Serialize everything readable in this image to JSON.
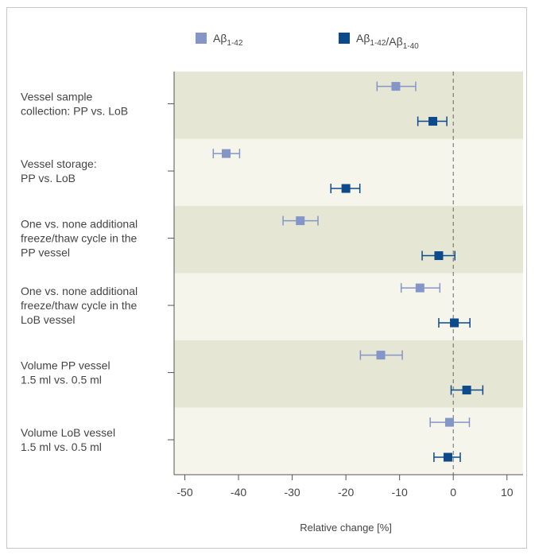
{
  "chart_data": {
    "type": "scatter",
    "subtype": "forest-plot",
    "xlabel": "Relative change [%]",
    "xlim": [
      -52,
      13
    ],
    "xticks": [
      -50,
      -40,
      -30,
      -20,
      -10,
      0,
      10
    ],
    "xtick_labels": [
      "-50",
      "-40",
      "-30",
      "-20",
      "-10",
      "0",
      "10"
    ],
    "reference_line": {
      "x": 0,
      "style": "dashed"
    },
    "grid": false,
    "legend_position": "top",
    "series": [
      {
        "key": "ab42",
        "name": "Aβ1-42",
        "legend_base": "Aβ",
        "legend_sub": "1-42",
        "color": "#8496c8",
        "points": [
          {
            "estimate": -10.7,
            "lower": -14.2,
            "upper": -7.0
          },
          {
            "estimate": -42.3,
            "lower": -44.7,
            "upper": -39.8
          },
          {
            "estimate": -28.5,
            "lower": -31.7,
            "upper": -25.2
          },
          {
            "estimate": -6.2,
            "lower": -9.7,
            "upper": -2.5
          },
          {
            "estimate": -13.5,
            "lower": -17.3,
            "upper": -9.5
          },
          {
            "estimate": -0.7,
            "lower": -4.3,
            "upper": 3.0
          }
        ]
      },
      {
        "key": "ratio",
        "name": "Aβ1-42/Aβ1-40",
        "legend_parts": [
          {
            "base": "Aβ",
            "sub": "1-42"
          },
          {
            "base": "/Aβ",
            "sub": "1-40"
          }
        ],
        "color": "#0c4a8c",
        "points": [
          {
            "estimate": -3.8,
            "lower": -6.6,
            "upper": -1.2
          },
          {
            "estimate": -20.0,
            "lower": -22.8,
            "upper": -17.4
          },
          {
            "estimate": -2.7,
            "lower": -5.8,
            "upper": 0.3
          },
          {
            "estimate": 0.2,
            "lower": -2.7,
            "upper": 3.1
          },
          {
            "estimate": 2.5,
            "lower": -0.4,
            "upper": 5.5
          },
          {
            "estimate": -1.0,
            "lower": -3.6,
            "upper": 1.3
          }
        ]
      }
    ],
    "categories": [
      {
        "lines": [
          "Vessel sample",
          "collection: PP vs. LoB"
        ],
        "shade": "#e5e6d3"
      },
      {
        "lines": [
          "Vessel storage:",
          "PP vs. LoB"
        ],
        "shade": "#f5f5ec"
      },
      {
        "lines": [
          "One vs. none additional",
          "freeze/thaw cycle in the",
          "PP vessel"
        ],
        "shade": "#e5e6d3"
      },
      {
        "lines": [
          "One vs. none additional",
          "freeze/thaw cycle in the",
          "LoB vessel"
        ],
        "shade": "#f5f5ec"
      },
      {
        "lines": [
          "Volume PP vessel",
          "1.5 ml vs. 0.5 ml"
        ],
        "shade": "#e5e6d3"
      },
      {
        "lines": [
          "Volume LoB vessel",
          "1.5 ml vs. 0.5 ml"
        ],
        "shade": "#f5f5ec"
      }
    ]
  }
}
